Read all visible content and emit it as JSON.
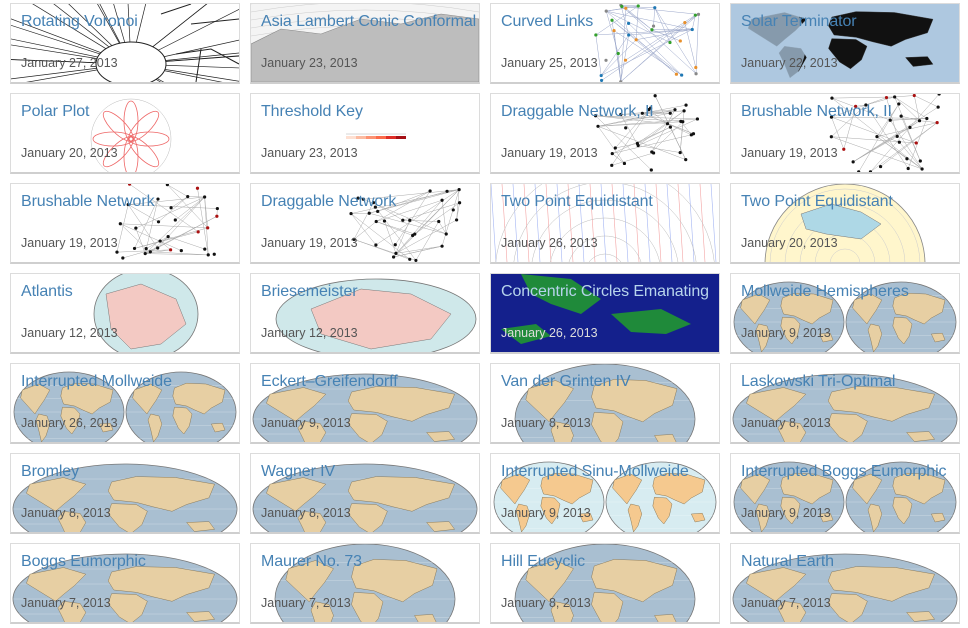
{
  "gallery": {
    "cards": [
      {
        "title": "Rotating Voronoi",
        "date": "January 27, 2013",
        "thumb": "voronoi"
      },
      {
        "title": "Asia Lambert Conic Conformal",
        "date": "January 23, 2013",
        "thumb": "asia-map"
      },
      {
        "title": "Curved Links",
        "date": "January 25, 2013",
        "thumb": "network-color"
      },
      {
        "title": "Solar Terminator",
        "date": "January 22, 2013",
        "thumb": "terminator"
      },
      {
        "title": "Polar Plot",
        "date": "January 20, 2013",
        "thumb": "polar"
      },
      {
        "title": "Threshold Key",
        "date": "January 23, 2013",
        "thumb": "threshold"
      },
      {
        "title": "Draggable Network, II",
        "date": "January 19, 2013",
        "thumb": "network"
      },
      {
        "title": "Brushable Network, II",
        "date": "January 19, 2013",
        "thumb": "network-red"
      },
      {
        "title": "Brushable Network",
        "date": "January 19, 2013",
        "thumb": "network-red"
      },
      {
        "title": "Draggable Network",
        "date": "January 19, 2013",
        "thumb": "network"
      },
      {
        "title": "Two Point Equidistant",
        "date": "January 26, 2013",
        "thumb": "equidistant-lines"
      },
      {
        "title": "Two Point Equidistant",
        "date": "January 20, 2013",
        "thumb": "globe-cream"
      },
      {
        "title": "Atlantis",
        "date": "January 12, 2013",
        "thumb": "pink-globe"
      },
      {
        "title": "Briesemeister",
        "date": "January 12, 2013",
        "thumb": "pink-oval"
      },
      {
        "title": "Concentric Circles Emanating",
        "date": "January 26, 2013",
        "thumb": "blue-sea"
      },
      {
        "title": "Mollweide Hemispheres",
        "date": "January 9, 2013",
        "thumb": "hemispheres"
      },
      {
        "title": "Interrupted Mollweide",
        "date": "January 26, 2013",
        "thumb": "hemispheres"
      },
      {
        "title": "Eckert–Greifendorff",
        "date": "January 9, 2013",
        "thumb": "world-oval"
      },
      {
        "title": "Van der Grinten IV",
        "date": "January 8, 2013",
        "thumb": "world-round"
      },
      {
        "title": "Laskowski Tri-Optimal",
        "date": "January 8, 2013",
        "thumb": "world-oval"
      },
      {
        "title": "Bromley",
        "date": "January 8, 2013",
        "thumb": "world-oval"
      },
      {
        "title": "Wagner IV",
        "date": "January 8, 2013",
        "thumb": "world-oval"
      },
      {
        "title": "Interrupted Sinu-Mollweide",
        "date": "January 9, 2013",
        "thumb": "interrupted-orange"
      },
      {
        "title": "Interrupted Boggs Eumorphic",
        "date": "January 9, 2013",
        "thumb": "hemispheres"
      },
      {
        "title": "Boggs Eumorphic",
        "date": "January 7, 2013",
        "thumb": "world-oval"
      },
      {
        "title": "Maurer No. 73",
        "date": "January 7, 2013",
        "thumb": "world-round"
      },
      {
        "title": "Hill Eucyclic",
        "date": "January 8, 2013",
        "thumb": "world-round"
      },
      {
        "title": "Natural Earth",
        "date": "January 7, 2013",
        "thumb": "world-oval"
      }
    ]
  }
}
